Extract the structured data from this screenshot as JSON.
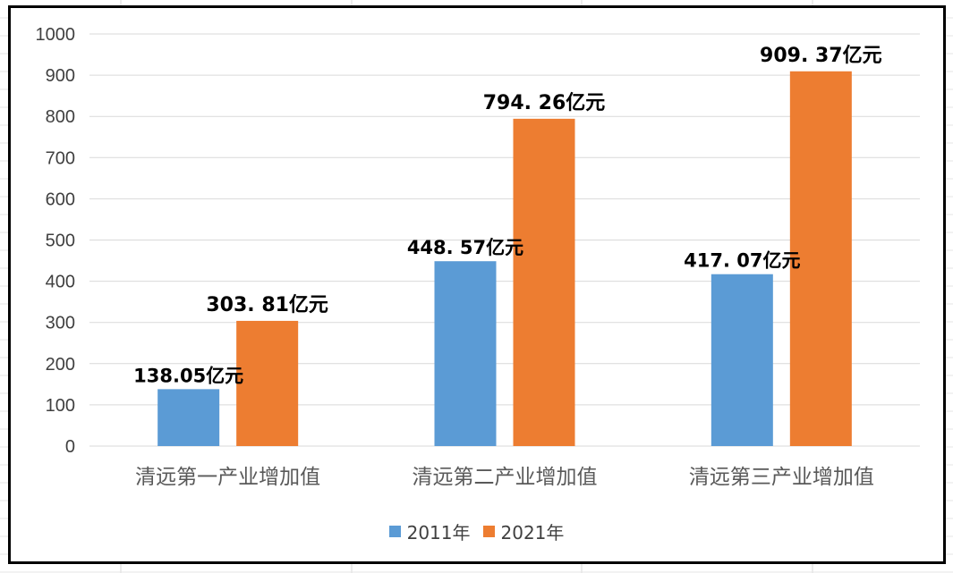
{
  "chart_data": {
    "type": "bar",
    "title": "",
    "xlabel": "",
    "ylabel": "",
    "ylim": [
      0,
      1000
    ],
    "yticks": [
      0,
      100,
      200,
      300,
      400,
      500,
      600,
      700,
      800,
      900,
      1000
    ],
    "grid": true,
    "legend_position": "bottom",
    "categories": [
      "清远第一产业增加值",
      "清远第二产业增加值",
      "清远第三产业增加值"
    ],
    "series": [
      {
        "name": "2011年",
        "color": "#5b9bd5",
        "values": [
          138.05,
          448.57,
          417.07
        ],
        "labels": [
          "138.05亿元",
          "448. 57亿元",
          "417. 07亿元"
        ]
      },
      {
        "name": "2021年",
        "color": "#ed7d31",
        "values": [
          303.81,
          794.26,
          909.37
        ],
        "labels": [
          "303. 81亿元",
          "794. 26亿元",
          "909. 37亿元"
        ]
      }
    ]
  }
}
